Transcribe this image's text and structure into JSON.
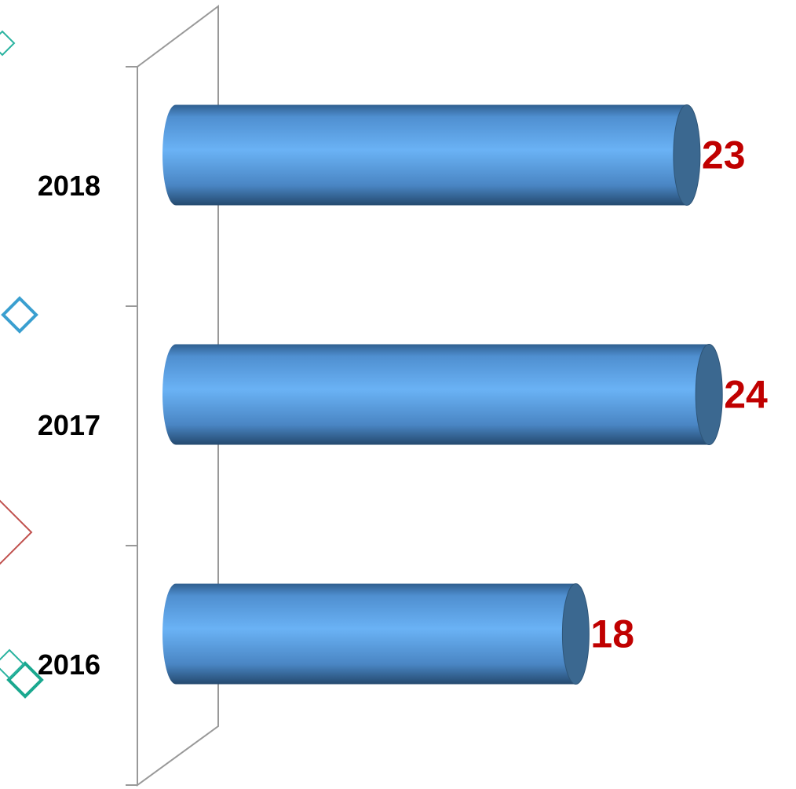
{
  "chart_data": {
    "type": "bar",
    "orientation": "horizontal",
    "categories": [
      "2018",
      "2017",
      "2016"
    ],
    "values": [
      23,
      24,
      18
    ],
    "color": "#5b9bd5",
    "label_color": "#c00000"
  }
}
